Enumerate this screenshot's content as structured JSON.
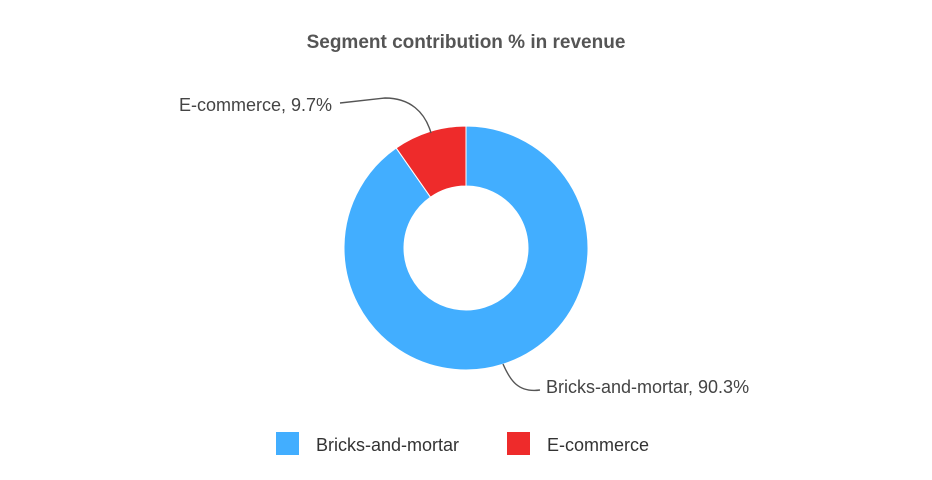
{
  "chart_data": {
    "type": "pie",
    "subtype": "donut",
    "title": "Segment contribution % in revenue",
    "categories": [
      "Bricks-and-mortar",
      "E-commerce"
    ],
    "values": [
      90.3,
      9.7
    ],
    "unit": "%",
    "colors": [
      "#42AEFF",
      "#EE2B2B"
    ],
    "data_labels": [
      "Bricks-and-mortar, 90.3%",
      "E-commerce, 9.7%"
    ],
    "legend": {
      "position": "bottom",
      "entries": [
        "Bricks-and-mortar",
        "E-commerce"
      ]
    }
  }
}
